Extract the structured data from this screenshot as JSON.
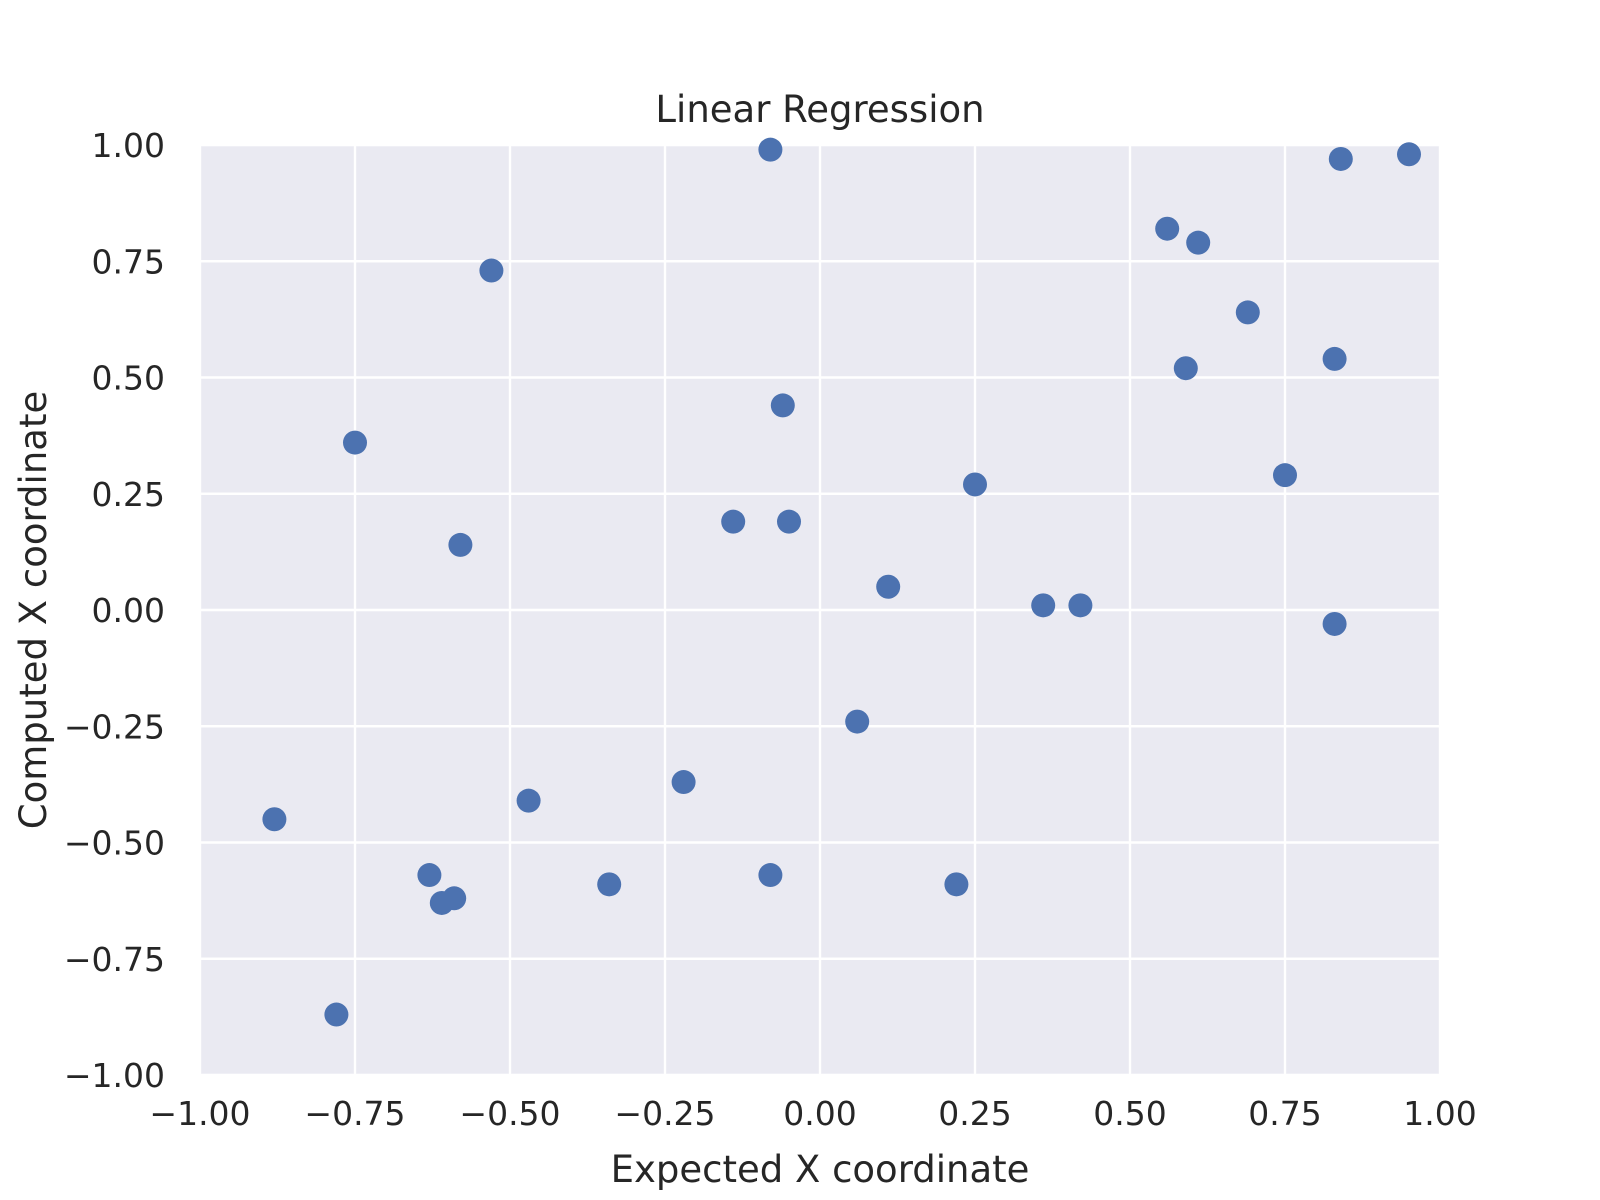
{
  "chart_data": {
    "type": "scatter",
    "title": "Linear Regression",
    "xlabel": "Expected X coordinate",
    "ylabel": "Computed X coordinate",
    "xlim": [
      -1.0,
      1.0
    ],
    "ylim": [
      -1.0,
      1.0
    ],
    "x_ticks": [
      -1.0,
      -0.75,
      -0.5,
      -0.25,
      0.0,
      0.25,
      0.5,
      0.75,
      1.0
    ],
    "y_ticks": [
      -1.0,
      -0.75,
      -0.5,
      -0.25,
      0.0,
      0.25,
      0.5,
      0.75,
      1.0
    ],
    "x_tick_labels": [
      "−1.00",
      "−0.75",
      "−0.50",
      "−0.25",
      "0.00",
      "0.25",
      "0.50",
      "0.75",
      "1.00"
    ],
    "y_tick_labels": [
      "−1.00",
      "−0.75",
      "−0.50",
      "−0.25",
      "0.00",
      "0.25",
      "0.50",
      "0.75",
      "1.00"
    ],
    "grid": true,
    "point_color": "#4c72b0",
    "background_color": "#eaeaf2",
    "series": [
      {
        "points": [
          {
            "x": -0.08,
            "y": 0.99
          },
          {
            "x": 0.84,
            "y": 0.97
          },
          {
            "x": 0.95,
            "y": 0.98
          },
          {
            "x": 0.56,
            "y": 0.82
          },
          {
            "x": 0.61,
            "y": 0.79
          },
          {
            "x": -0.53,
            "y": 0.73
          },
          {
            "x": 0.69,
            "y": 0.64
          },
          {
            "x": 0.59,
            "y": 0.52
          },
          {
            "x": 0.83,
            "y": 0.54
          },
          {
            "x": -0.06,
            "y": 0.44
          },
          {
            "x": -0.75,
            "y": 0.36
          },
          {
            "x": 0.25,
            "y": 0.27
          },
          {
            "x": 0.75,
            "y": 0.29
          },
          {
            "x": -0.14,
            "y": 0.19
          },
          {
            "x": -0.05,
            "y": 0.19
          },
          {
            "x": -0.58,
            "y": 0.14
          },
          {
            "x": 0.11,
            "y": 0.05
          },
          {
            "x": 0.36,
            "y": 0.01
          },
          {
            "x": 0.42,
            "y": 0.01
          },
          {
            "x": 0.83,
            "y": -0.03
          },
          {
            "x": 0.06,
            "y": -0.24
          },
          {
            "x": -0.22,
            "y": -0.37
          },
          {
            "x": -0.47,
            "y": -0.41
          },
          {
            "x": -0.88,
            "y": -0.45
          },
          {
            "x": -0.63,
            "y": -0.57
          },
          {
            "x": -0.08,
            "y": -0.57
          },
          {
            "x": -0.34,
            "y": -0.59
          },
          {
            "x": 0.22,
            "y": -0.59
          },
          {
            "x": -0.59,
            "y": -0.62
          },
          {
            "x": -0.61,
            "y": -0.63
          },
          {
            "x": -0.78,
            "y": -0.87
          }
        ]
      }
    ]
  }
}
